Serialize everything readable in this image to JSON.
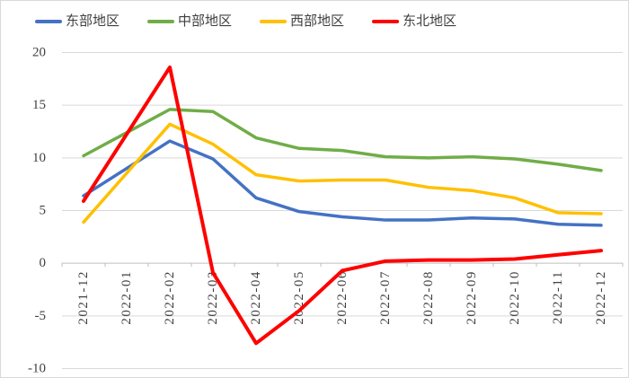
{
  "chart_data": {
    "type": "line",
    "title": "",
    "xlabel": "",
    "ylabel": "",
    "x_labels": [
      "2021-12",
      "2022-01",
      "2022-02",
      "2022-03",
      "2022-04",
      "2022-05",
      "2022-06",
      "2022-07",
      "2022-08",
      "2022-09",
      "2022-10",
      "2022-11",
      "2022-12"
    ],
    "y_ticks": [
      20,
      15,
      10,
      5,
      0,
      -5,
      -10
    ],
    "ylim": [
      -10,
      20
    ],
    "grid": true,
    "legend_position": "top",
    "series": [
      {
        "name": "东部地区",
        "color": "#4472C4",
        "values": [
          6.4,
          null,
          11.6,
          9.9,
          6.2,
          4.9,
          4.4,
          4.1,
          4.1,
          4.3,
          4.2,
          3.7,
          3.6
        ]
      },
      {
        "name": "中部地区",
        "color": "#70AD47",
        "values": [
          10.2,
          null,
          14.6,
          14.4,
          11.9,
          10.9,
          10.7,
          10.1,
          10.0,
          10.1,
          9.9,
          9.4,
          8.8
        ]
      },
      {
        "name": "西部地区",
        "color": "#FFC000",
        "values": [
          3.9,
          null,
          13.2,
          11.3,
          8.4,
          7.8,
          7.9,
          7.9,
          7.2,
          6.9,
          6.2,
          4.8,
          4.7
        ]
      },
      {
        "name": "东北地区",
        "color": "#FF0000",
        "values": [
          5.9,
          null,
          18.6,
          -0.9,
          -7.6,
          -4.5,
          -0.7,
          0.2,
          0.3,
          0.3,
          0.4,
          0.8,
          1.2
        ]
      }
    ],
    "colors": {
      "gridline": "#D9D9D9",
      "axis_line": "#BFBFBF",
      "tick_label": "#404040"
    }
  }
}
